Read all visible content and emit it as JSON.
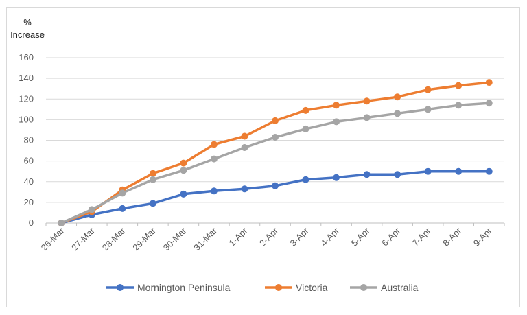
{
  "chart_data": {
    "type": "line",
    "ylabel_line1": "%",
    "ylabel_line2": "Increase",
    "categories": [
      "26-Mar",
      "27-Mar",
      "28-Mar",
      "29-Mar",
      "30-Mar",
      "31-Mar",
      "1-Apr",
      "2-Apr",
      "3-Apr",
      "4-Apr",
      "5-Apr",
      "6-Apr",
      "7-Apr",
      "8-Apr",
      "9-Apr"
    ],
    "ylim": [
      0,
      160
    ],
    "yticks": [
      0,
      20,
      40,
      60,
      80,
      100,
      120,
      140,
      160
    ],
    "grid": true,
    "legend": "bottom",
    "series": [
      {
        "name": "Mornington Peninsula",
        "color": "#4472c4",
        "values": [
          0,
          8,
          14,
          19,
          28,
          31,
          33,
          36,
          42,
          44,
          47,
          47,
          50,
          50,
          50
        ]
      },
      {
        "name": "Victoria",
        "color": "#ed7d31",
        "values": [
          0,
          11,
          32,
          48,
          58,
          76,
          84,
          99,
          109,
          114,
          118,
          122,
          129,
          133,
          136
        ]
      },
      {
        "name": "Australia",
        "color": "#a5a5a5",
        "values": [
          0,
          13,
          29,
          42,
          51,
          62,
          73,
          83,
          91,
          98,
          102,
          106,
          110,
          114,
          116
        ]
      }
    ]
  }
}
